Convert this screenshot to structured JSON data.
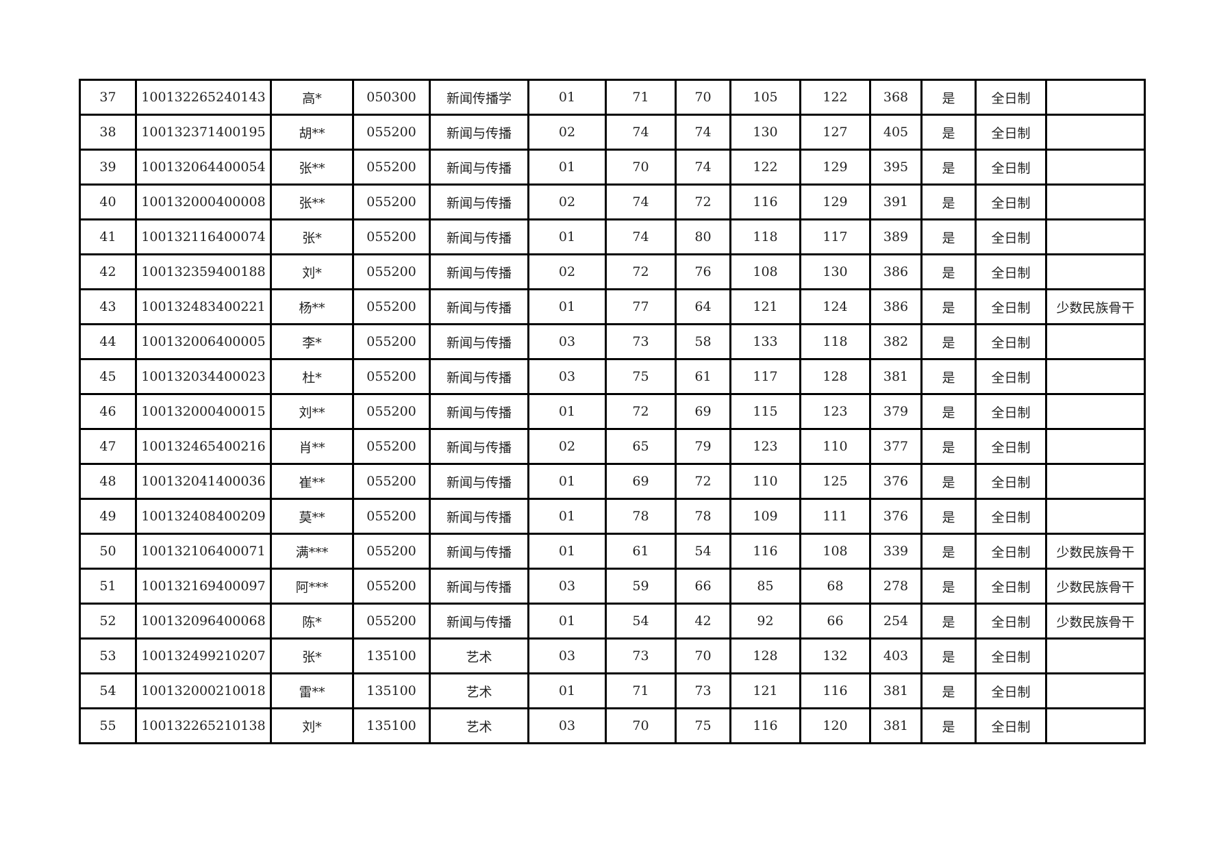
{
  "rows": [
    [
      "37",
      "100132265240143",
      "高*",
      "050300",
      "新闻传播学",
      "01",
      "71",
      "70",
      "105",
      "122",
      "368",
      "是",
      "全日制",
      ""
    ],
    [
      "38",
      "100132371400195",
      "胡**",
      "055200",
      "新闻与传播",
      "02",
      "74",
      "74",
      "130",
      "127",
      "405",
      "是",
      "全日制",
      ""
    ],
    [
      "39",
      "100132064400054",
      "张**",
      "055200",
      "新闻与传播",
      "01",
      "70",
      "74",
      "122",
      "129",
      "395",
      "是",
      "全日制",
      ""
    ],
    [
      "40",
      "100132000400008",
      "张**",
      "055200",
      "新闻与传播",
      "02",
      "74",
      "72",
      "116",
      "129",
      "391",
      "是",
      "全日制",
      ""
    ],
    [
      "41",
      "100132116400074",
      "张*",
      "055200",
      "新闻与传播",
      "01",
      "74",
      "80",
      "118",
      "117",
      "389",
      "是",
      "全日制",
      ""
    ],
    [
      "42",
      "100132359400188",
      "刘*",
      "055200",
      "新闻与传播",
      "02",
      "72",
      "76",
      "108",
      "130",
      "386",
      "是",
      "全日制",
      ""
    ],
    [
      "43",
      "100132483400221",
      "杨**",
      "055200",
      "新闻与传播",
      "01",
      "77",
      "64",
      "121",
      "124",
      "386",
      "是",
      "全日制",
      "少数民族骨干"
    ],
    [
      "44",
      "100132006400005",
      "李*",
      "055200",
      "新闻与传播",
      "03",
      "73",
      "58",
      "133",
      "118",
      "382",
      "是",
      "全日制",
      ""
    ],
    [
      "45",
      "100132034400023",
      "杜*",
      "055200",
      "新闻与传播",
      "03",
      "75",
      "61",
      "117",
      "128",
      "381",
      "是",
      "全日制",
      ""
    ],
    [
      "46",
      "100132000400015",
      "刘**",
      "055200",
      "新闻与传播",
      "01",
      "72",
      "69",
      "115",
      "123",
      "379",
      "是",
      "全日制",
      ""
    ],
    [
      "47",
      "100132465400216",
      "肖**",
      "055200",
      "新闻与传播",
      "02",
      "65",
      "79",
      "123",
      "110",
      "377",
      "是",
      "全日制",
      ""
    ],
    [
      "48",
      "100132041400036",
      "崔**",
      "055200",
      "新闻与传播",
      "01",
      "69",
      "72",
      "110",
      "125",
      "376",
      "是",
      "全日制",
      ""
    ],
    [
      "49",
      "100132408400209",
      "莫**",
      "055200",
      "新闻与传播",
      "01",
      "78",
      "78",
      "109",
      "111",
      "376",
      "是",
      "全日制",
      ""
    ],
    [
      "50",
      "100132106400071",
      "满***",
      "055200",
      "新闻与传播",
      "01",
      "61",
      "54",
      "116",
      "108",
      "339",
      "是",
      "全日制",
      "少数民族骨干"
    ],
    [
      "51",
      "100132169400097",
      "阿***",
      "055200",
      "新闻与传播",
      "03",
      "59",
      "66",
      "85",
      "68",
      "278",
      "是",
      "全日制",
      "少数民族骨干"
    ],
    [
      "52",
      "100132096400068",
      "陈*",
      "055200",
      "新闻与传播",
      "01",
      "54",
      "42",
      "92",
      "66",
      "254",
      "是",
      "全日制",
      "少数民族骨干"
    ],
    [
      "53",
      "100132499210207",
      "张*",
      "135100",
      "艺术",
      "03",
      "73",
      "70",
      "128",
      "132",
      "403",
      "是",
      "全日制",
      ""
    ],
    [
      "54",
      "100132000210018",
      "雷**",
      "135100",
      "艺术",
      "01",
      "71",
      "73",
      "121",
      "116",
      "381",
      "是",
      "全日制",
      ""
    ],
    [
      "55",
      "100132265210138",
      "刘*",
      "135100",
      "艺术",
      "03",
      "70",
      "75",
      "116",
      "120",
      "381",
      "是",
      "全日制",
      ""
    ]
  ]
}
